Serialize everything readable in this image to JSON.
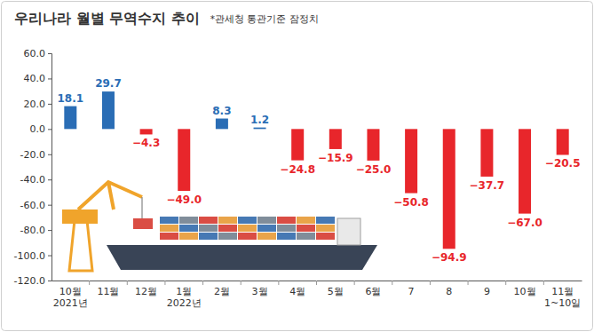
{
  "chart_data": {
    "type": "bar",
    "title": "우리나라 월별 무역수지 추이",
    "subtitle": "*관세청 통관기준 잠정치",
    "categories": [
      "10월\n2021년",
      "11월",
      "12월",
      "1월\n2022년",
      "2월",
      "3월",
      "4월",
      "5월",
      "6월",
      "7",
      "8",
      "9",
      "10월",
      "11월\n1~10일"
    ],
    "values": [
      18.1,
      29.7,
      -4.3,
      -49.0,
      8.3,
      1.2,
      -24.8,
      -15.9,
      -25.0,
      -50.8,
      -94.9,
      -37.7,
      -67.0,
      -20.5
    ],
    "value_labels": [
      "18.1",
      "29.7",
      "−4.3",
      "−49.0",
      "8.3",
      "1.2",
      "−24.8",
      "−15.9",
      "−25.0",
      "−50.8",
      "−94.9",
      "−37.7",
      "−67.0",
      "−20.5"
    ],
    "colors": [
      "#2a6db5",
      "#2a6db5",
      "#e8262b",
      "#e8262b",
      "#2a6db5",
      "#2a6db5",
      "#e8262b",
      "#e8262b",
      "#e8262b",
      "#e8262b",
      "#e8262b",
      "#e8262b",
      "#e8262b",
      "#e8262b"
    ],
    "ylim": [
      -120,
      60
    ],
    "yticks": [
      {
        "value": 60,
        "label": "60.0"
      },
      {
        "value": 40,
        "label": "40.0"
      },
      {
        "value": 20,
        "label": "20.0"
      },
      {
        "value": 0,
        "label": "0.0"
      },
      {
        "value": -20,
        "label": "-20.0"
      },
      {
        "value": -40,
        "label": "-40.0"
      },
      {
        "value": -60,
        "label": "-60.0"
      },
      {
        "value": -80,
        "label": "-80.0"
      },
      {
        "value": -100,
        "label": "-100.0"
      },
      {
        "value": -120,
        "label": "-120.0"
      }
    ],
    "grid": false,
    "data_labels": true
  }
}
